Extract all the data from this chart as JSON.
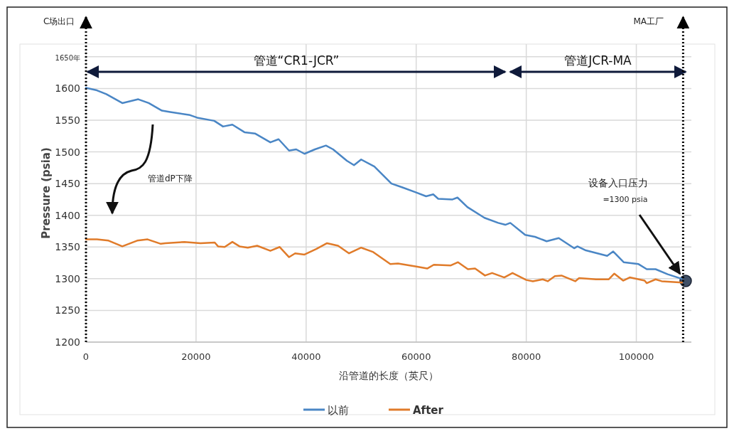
{
  "chart_data": {
    "type": "line",
    "xlabel": "沿管道的长度（英尺）",
    "ylabel": "Pressure (psia)",
    "xlim": [
      0,
      110000
    ],
    "ylim": [
      1200,
      1670
    ],
    "xticks": [
      0,
      20000,
      40000,
      60000,
      80000,
      100000
    ],
    "yticks": [
      1200,
      1250,
      1300,
      1350,
      1400,
      1450,
      1500,
      1550,
      1600,
      {
        "value": 1650,
        "label": "1650年"
      }
    ],
    "grid": true,
    "legend": "bottom",
    "line_style": "solid",
    "series": [
      {
        "name": "以前",
        "color": "#4a86c5",
        "x": [
          0,
          2000,
          3700,
          6600,
          9500,
          11400,
          13800,
          15300,
          18900,
          20200,
          23300,
          24900,
          26600,
          28800,
          30700,
          33500,
          35000,
          36900,
          38200,
          39700,
          41600,
          43600,
          44900,
          47400,
          48700,
          50000,
          52400,
          55500,
          57500,
          60000,
          61800,
          63100,
          64000,
          66600,
          67500,
          69300,
          72400,
          74900,
          76200,
          77100,
          79800,
          81600,
          83700,
          85900,
          88700,
          89300,
          90700,
          94700,
          95800,
          97700,
          100400,
          101900,
          103500,
          105700,
          108200
        ],
        "values": [
          1601,
          1597,
          1591,
          1577,
          1583,
          1577,
          1565,
          1563,
          1558,
          1554,
          1549,
          1540,
          1543,
          1531,
          1529,
          1515,
          1520,
          1502,
          1504,
          1497,
          1504,
          1510,
          1504,
          1486,
          1479,
          1488,
          1477,
          1450,
          1444,
          1436,
          1430,
          1433,
          1426,
          1425,
          1428,
          1413,
          1396,
          1388,
          1385,
          1388,
          1369,
          1366,
          1359,
          1364,
          1348,
          1351,
          1345,
          1336,
          1343,
          1326,
          1323,
          1315,
          1315,
          1307,
          1300
        ]
      },
      {
        "name": "After",
        "color": "#e07b2a",
        "x": [
          0,
          2000,
          4100,
          6600,
          9300,
          11200,
          13600,
          14400,
          17900,
          20800,
          23400,
          24000,
          25200,
          26600,
          27900,
          29400,
          31100,
          33500,
          35200,
          36900,
          38000,
          39700,
          41900,
          43800,
          45800,
          47800,
          50000,
          52200,
          55300,
          56700,
          60200,
          62000,
          63200,
          66300,
          67600,
          69400,
          70700,
          72500,
          73800,
          76000,
          77500,
          80000,
          81200,
          83000,
          83900,
          85200,
          86400,
          88900,
          89600,
          92700,
          95000,
          96000,
          97600,
          98800,
          101500,
          101900,
          103500,
          104600,
          108300
        ],
        "values": [
          1362,
          1362,
          1360,
          1351,
          1360,
          1362,
          1355,
          1356,
          1358,
          1356,
          1357,
          1351,
          1350,
          1358,
          1351,
          1349,
          1352,
          1344,
          1350,
          1334,
          1340,
          1338,
          1347,
          1356,
          1352,
          1340,
          1349,
          1342,
          1323,
          1324,
          1319,
          1316,
          1322,
          1321,
          1326,
          1315,
          1316,
          1305,
          1309,
          1302,
          1309,
          1298,
          1296,
          1299,
          1296,
          1304,
          1305,
          1296,
          1301,
          1299,
          1299,
          1308,
          1297,
          1302,
          1297,
          1293,
          1299,
          1296,
          1294
        ]
      }
    ],
    "ref_lines": [
      {
        "axis": "x",
        "value": 0,
        "label": "C场出口",
        "line_style": "dotted",
        "color": "#000000"
      },
      {
        "axis": "x",
        "value": 108500,
        "label": "MA工厂",
        "line_style": "dotted",
        "color": "#000000"
      }
    ],
    "annotations": [
      "管道dP下降",
      "设备入口压力\n=1300 psia",
      "管道“CR1-JCR”",
      "管道JCR-MA"
    ]
  }
}
